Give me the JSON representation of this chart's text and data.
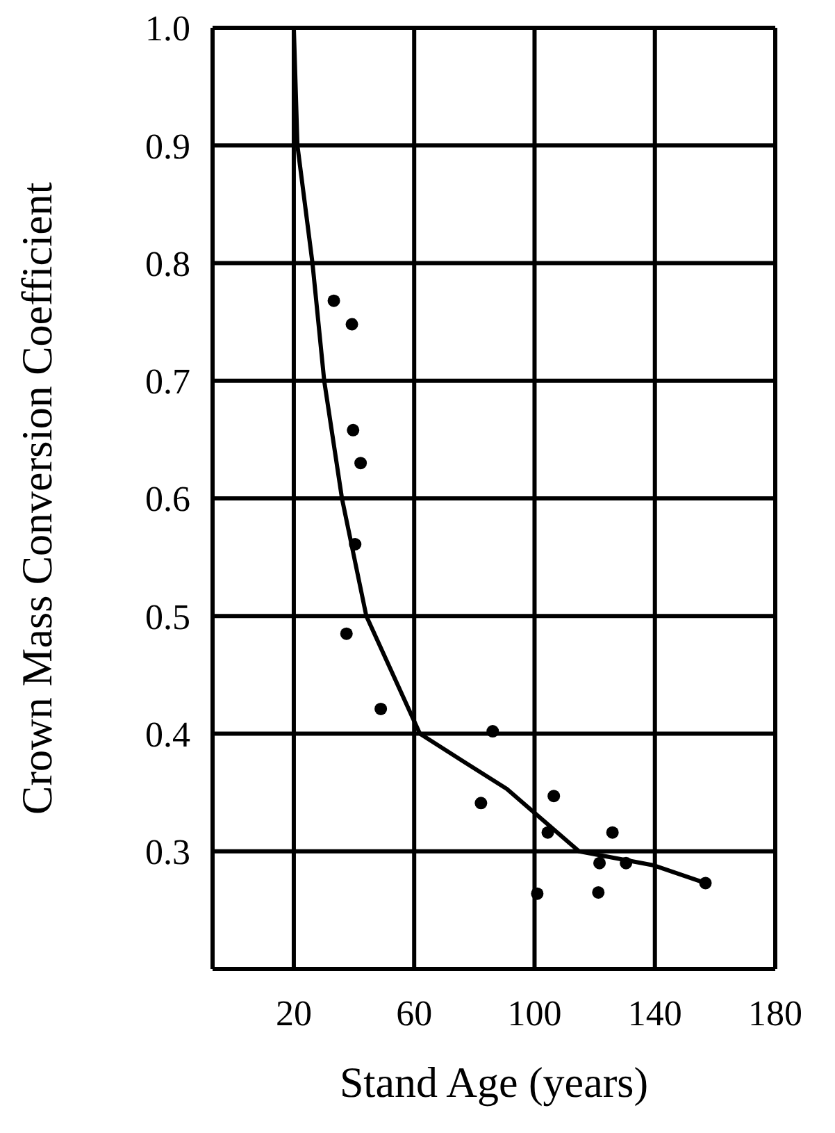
{
  "chart_data": {
    "type": "scatter",
    "xlabel": "Stand Age (years)",
    "ylabel": "Crown Mass Conversion Coefficient",
    "xlim": [
      -7,
      180
    ],
    "xticks": [
      20,
      60,
      100,
      140,
      180
    ],
    "ylim": [
      0.2,
      1.0
    ],
    "yticks": [
      {
        "value": 0.2,
        "label": null
      },
      0.3,
      0.4,
      0.5,
      0.6,
      0.7,
      0.8,
      0.9,
      {
        "value": 1,
        "label": "1.0"
      }
    ],
    "grid": true,
    "series": [
      {
        "type": "scatter",
        "color": "#000000",
        "marker": "circle",
        "x": [
          33.3,
          39.3,
          39.7,
          42.2,
          40.4,
          37.5,
          48.9,
          86.1,
          82.2,
          106.4,
          104.4,
          125.9,
          121.6,
          130.4,
          100.9,
          121.2,
          156.8
        ],
        "values": [
          0.768,
          0.748,
          0.658,
          0.63,
          0.561,
          0.485,
          0.421,
          0.402,
          0.341,
          0.347,
          0.316,
          0.316,
          0.29,
          0.29,
          0.264,
          0.265,
          0.273
        ]
      },
      {
        "type": "line",
        "color": "#000000",
        "marker": "none",
        "line_style": "solid",
        "x": [
          20,
          21.2,
          26.2,
          30.1,
          36,
          44.1,
          61.9,
          76,
          90.8,
          114.8,
          139.7,
          156.8
        ],
        "values": [
          1.0,
          0.9,
          0.8,
          0.7,
          0.6,
          0.5,
          0.4,
          0.377,
          0.353,
          0.3,
          0.288,
          0.273
        ]
      }
    ]
  }
}
